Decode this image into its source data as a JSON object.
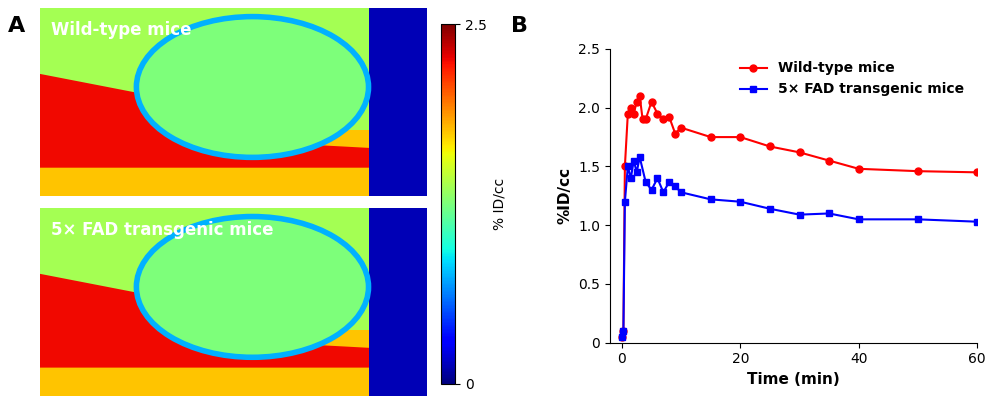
{
  "panel_labels": [
    "A",
    "B"
  ],
  "images": {
    "titles": [
      "Wild-type mice",
      "5× FAD transgenic mice"
    ],
    "colorbar": {
      "label": "% ID/cc",
      "range": [
        0,
        2.5
      ],
      "ticks": [
        0,
        2.5
      ]
    }
  },
  "chart_data": {
    "type": "line",
    "xlabel": "Time (min)",
    "ylabel": "%ID/cc",
    "xlim": [
      -2,
      60
    ],
    "xticks": [
      0,
      20,
      40,
      60
    ],
    "ylim": [
      0,
      2.5
    ],
    "yticks": [
      0,
      0.5,
      {
        "value": 1,
        "label": "1.0"
      },
      1.5,
      {
        "value": 2,
        "label": "2.0"
      },
      2.5
    ],
    "legend": "upper right",
    "series": [
      {
        "name": "Wild-type mice",
        "color": "#ff0000",
        "marker": "circle",
        "line_style": "solid",
        "x": [
          0,
          0.25,
          0.5,
          1,
          1.5,
          2,
          2.5,
          3,
          3.5,
          4,
          5,
          6,
          7,
          8,
          9,
          10,
          15,
          20,
          25,
          30,
          35,
          40,
          50,
          60
        ],
        "values": [
          0.05,
          0.1,
          1.5,
          1.95,
          2.0,
          1.95,
          2.05,
          2.1,
          1.9,
          1.9,
          2.05,
          1.95,
          1.9,
          1.92,
          1.78,
          1.83,
          1.75,
          1.75,
          1.67,
          1.62,
          1.55,
          1.48,
          1.46,
          1.45
        ]
      },
      {
        "name": "5× FAD transgenic mice",
        "color": "#0000ff",
        "marker": "square",
        "line_style": "solid",
        "x": [
          0,
          0.25,
          0.5,
          1,
          1.5,
          2,
          2.5,
          3,
          4,
          5,
          6,
          7,
          8,
          9,
          10,
          15,
          20,
          25,
          30,
          35,
          40,
          50,
          60
        ],
        "values": [
          0.05,
          0.1,
          1.2,
          1.5,
          1.4,
          1.55,
          1.45,
          1.58,
          1.37,
          1.3,
          1.4,
          1.28,
          1.37,
          1.33,
          1.28,
          1.22,
          1.2,
          1.14,
          1.09,
          1.1,
          1.05,
          1.05,
          1.03
        ]
      }
    ]
  }
}
